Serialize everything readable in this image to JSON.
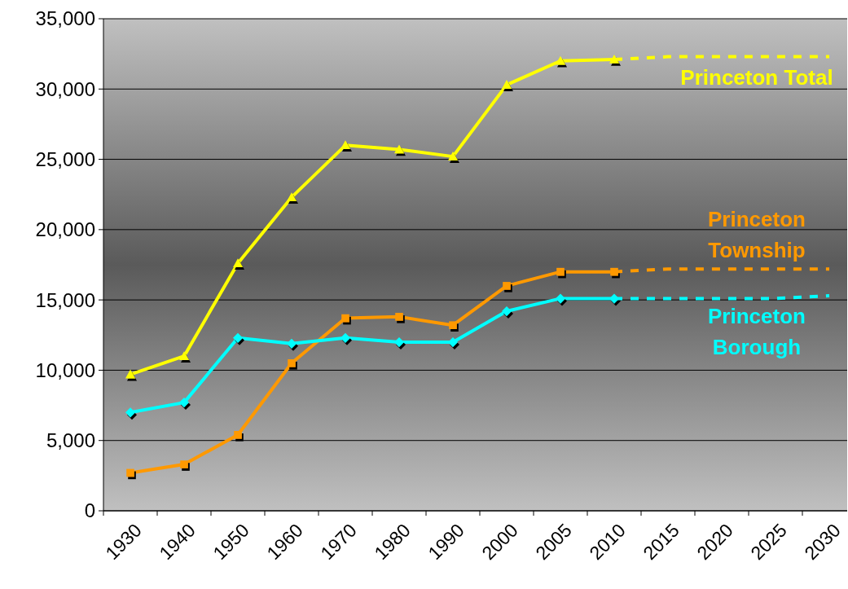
{
  "chart_data": {
    "type": "line",
    "categories": [
      "1930",
      "1940",
      "1950",
      "1960",
      "1970",
      "1980",
      "1990",
      "2000",
      "2005",
      "2010",
      "2015",
      "2020",
      "2025",
      "2030"
    ],
    "series": [
      {
        "name": "Princeton Total",
        "color": "#ffff00",
        "marker": "triangle",
        "line_style": "solid",
        "values": [
          9700,
          11000,
          17600,
          22300,
          26000,
          25700,
          25200,
          30300,
          32000,
          32100,
          null,
          null,
          null,
          null
        ]
      },
      {
        "name": "Princeton Township",
        "color": "#ff9900",
        "marker": "square",
        "line_style": "solid",
        "values": [
          2700,
          3300,
          5400,
          10500,
          13700,
          13800,
          13200,
          16000,
          17000,
          17000,
          null,
          null,
          null,
          null
        ]
      },
      {
        "name": "Princeton Borough",
        "color": "#00ffff",
        "marker": "diamond",
        "line_style": "solid",
        "values": [
          7000,
          7700,
          12300,
          11900,
          12300,
          12000,
          12000,
          14200,
          15100,
          15100,
          null,
          null,
          null,
          null
        ]
      },
      {
        "color": "#ffff00",
        "marker": "none",
        "line_style": "dashed",
        "values": [
          null,
          null,
          null,
          null,
          null,
          null,
          null,
          null,
          null,
          32100,
          32300,
          32300,
          32300,
          32300
        ]
      },
      {
        "color": "#ff9900",
        "marker": "none",
        "line_style": "dashed",
        "values": [
          null,
          null,
          null,
          null,
          null,
          null,
          null,
          null,
          null,
          17000,
          17200,
          17200,
          17200,
          17200
        ]
      },
      {
        "color": "#00ffff",
        "marker": "none",
        "line_style": "dashed",
        "values": [
          null,
          null,
          null,
          null,
          null,
          null,
          null,
          null,
          null,
          15100,
          15100,
          15100,
          15100,
          15300
        ]
      }
    ],
    "ylim": [
      0,
      35000
    ],
    "yticks": [
      {
        "value": 0,
        "label": "0"
      },
      {
        "value": 5000,
        "label": "5,000"
      },
      {
        "value": 10000,
        "label": "10,000"
      },
      {
        "value": 15000,
        "label": "15,000"
      },
      {
        "value": 20000,
        "label": "20,000"
      },
      {
        "value": 25000,
        "label": "25,000"
      },
      {
        "value": 30000,
        "label": "30,000"
      },
      {
        "value": 35000,
        "label": "35,000"
      }
    ],
    "grid": "y"
  }
}
